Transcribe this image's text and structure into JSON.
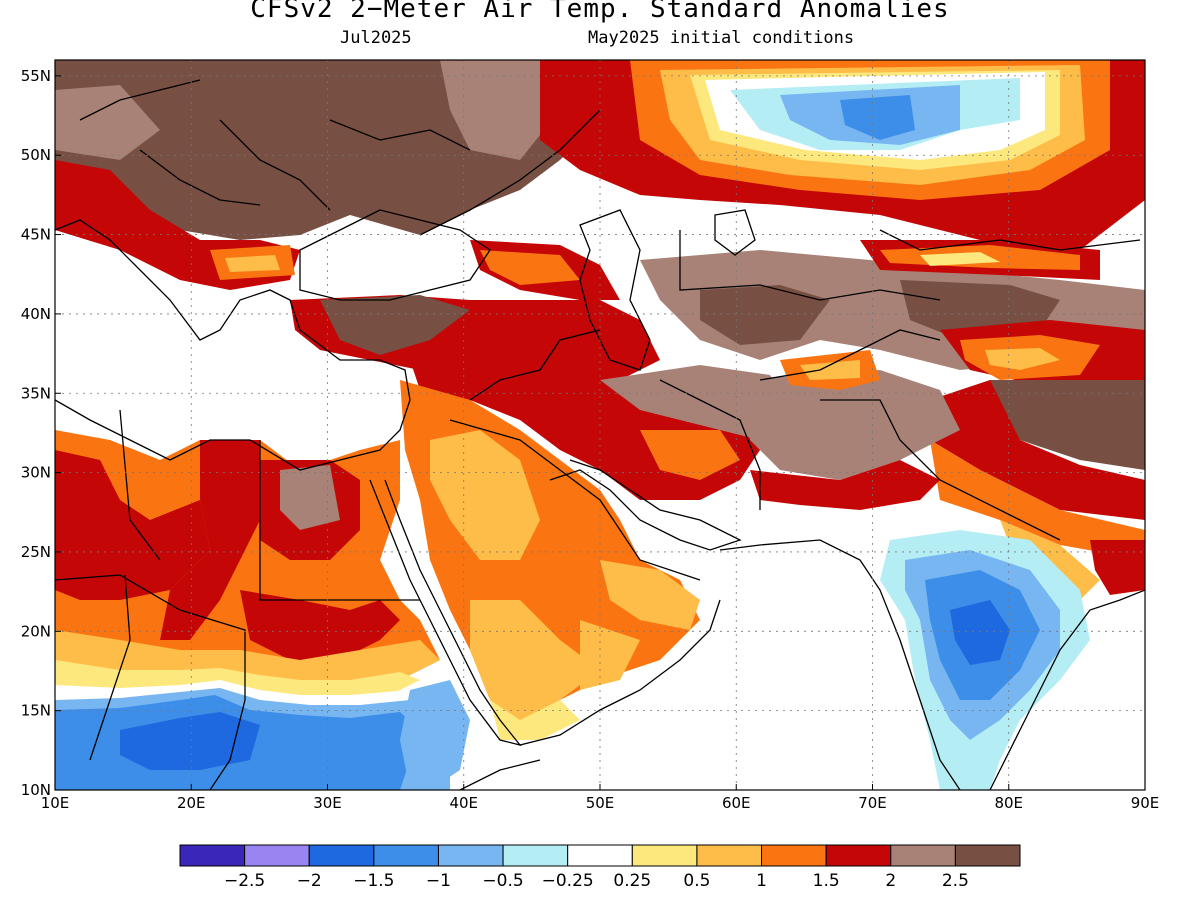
{
  "title": "CFSv2 2−Meter Air Temp. Standard Anomalies",
  "subtitle_left": "Jul2025",
  "subtitle_right": "May2025 initial conditions",
  "map": {
    "lon_range": [
      10,
      90
    ],
    "lat_range": [
      10,
      56
    ],
    "lon_ticks": [
      {
        "value": 10,
        "label": "10E"
      },
      {
        "value": 20,
        "label": "20E"
      },
      {
        "value": 30,
        "label": "30E"
      },
      {
        "value": 40,
        "label": "40E"
      },
      {
        "value": 50,
        "label": "50E"
      },
      {
        "value": 60,
        "label": "60E"
      },
      {
        "value": 70,
        "label": "70E"
      },
      {
        "value": 80,
        "label": "80E"
      },
      {
        "value": 90,
        "label": "90E"
      }
    ],
    "lat_ticks": [
      {
        "value": 10,
        "label": "10N"
      },
      {
        "value": 15,
        "label": "15N"
      },
      {
        "value": 20,
        "label": "20N"
      },
      {
        "value": 25,
        "label": "25N"
      },
      {
        "value": 30,
        "label": "30N"
      },
      {
        "value": 35,
        "label": "35N"
      },
      {
        "value": 40,
        "label": "40N"
      },
      {
        "value": 45,
        "label": "45N"
      },
      {
        "value": 50,
        "label": "50N"
      },
      {
        "value": 55,
        "label": "55N"
      }
    ],
    "gridlines": "dotted"
  },
  "colorbar": {
    "colors": [
      "#3a26b8",
      "#9a84f2",
      "#1e68e0",
      "#3c8ee8",
      "#78b6f2",
      "#b4eef4",
      "#ffffff",
      "#fde87e",
      "#fdbd48",
      "#fa7512",
      "#c40606",
      "#a88276",
      "#774f43"
    ],
    "labels": [
      "−2.5",
      "−2",
      "−1.5",
      "−1",
      "−0.5",
      "−0.25",
      "0.25",
      "0.5",
      "1",
      "1.5",
      "2",
      "2.5"
    ]
  }
}
